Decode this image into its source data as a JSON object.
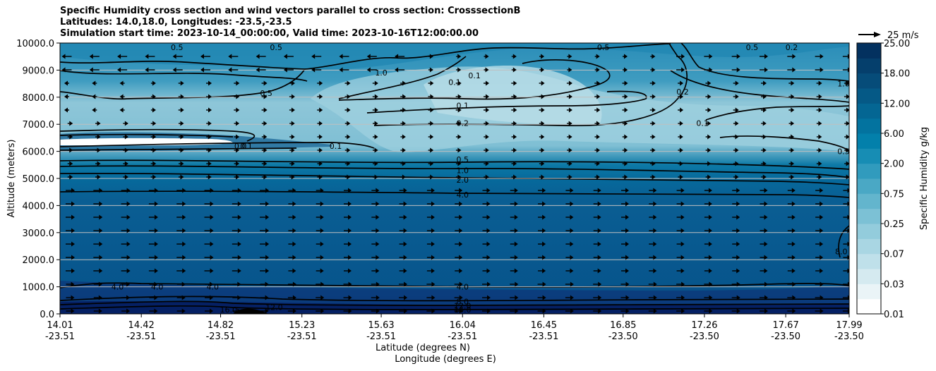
{
  "chart_data": {
    "type": "heatmap",
    "title_lines": [
      "Specific Humidity cross section and wind vectors parallel to cross section: CrosssectionB",
      "Latitudes: 14.0,18.0, Longitudes: -23.5,-23.5",
      "Simulation start time: 2023-10-14_00:00:00, Valid time: 2023-10-16T12:00:00.00"
    ],
    "ylabel": "Altitude (meters)",
    "xlabel_lat": "Latitude (degrees N)",
    "xlabel_lon": "Longitude (degrees E)",
    "ylim": [
      0,
      10000
    ],
    "y_ticks": [
      {
        "value": 0,
        "label": "0.0"
      },
      {
        "value": 1000,
        "label": "1000.0"
      },
      {
        "value": 2000,
        "label": "2000.0"
      },
      {
        "value": 3000,
        "label": "3000.0"
      },
      {
        "value": 4000,
        "label": "4000.0"
      },
      {
        "value": 5000,
        "label": "5000.0"
      },
      {
        "value": 6000,
        "label": "6000.0"
      },
      {
        "value": 7000,
        "label": "7000.0"
      },
      {
        "value": 8000,
        "label": "8000.0"
      },
      {
        "value": 9000,
        "label": "9000.0"
      },
      {
        "value": 10000,
        "label": "10000.0"
      }
    ],
    "x_ticks": [
      {
        "lat": "14.01",
        "lon": "-23.51"
      },
      {
        "lat": "14.42",
        "lon": "-23.51"
      },
      {
        "lat": "14.82",
        "lon": "-23.51"
      },
      {
        "lat": "15.23",
        "lon": "-23.51"
      },
      {
        "lat": "15.63",
        "lon": "-23.51"
      },
      {
        "lat": "16.04",
        "lon": "-23.51"
      },
      {
        "lat": "16.45",
        "lon": "-23.51"
      },
      {
        "lat": "16.85",
        "lon": "-23.50"
      },
      {
        "lat": "17.26",
        "lon": "-23.50"
      },
      {
        "lat": "17.67",
        "lon": "-23.50"
      },
      {
        "lat": "17.99",
        "lon": "-23.50"
      }
    ],
    "colorbar": {
      "label": "Specific Humidity g/kg",
      "levels": [
        0.01,
        0.02,
        0.03,
        0.05,
        0.07,
        0.1,
        0.25,
        0.5,
        0.75,
        1.0,
        2.0,
        4.0,
        6.0,
        8.0,
        12.0,
        16.0,
        18.0,
        20.0,
        25.0
      ],
      "tick_labels": [
        "0.01",
        "0.03",
        "0.07",
        "0.25",
        "0.75",
        "2.00",
        "6.00",
        "12.00",
        "18.00",
        "25.00"
      ]
    },
    "contour_levels": [
      "0.1",
      "0.2",
      "0.5",
      "1.0",
      "2.0",
      "4.0",
      "8.0",
      "12.0",
      "16.0"
    ],
    "contour_labels": [
      {
        "text": "0.5",
        "lat": 15.05,
        "alt": 8150
      },
      {
        "text": "1.0",
        "lat": 15.63,
        "alt": 8900
      },
      {
        "text": "0.1",
        "lat": 16.1,
        "alt": 8800
      },
      {
        "text": "0.1",
        "lat": 16.0,
        "alt": 8550
      },
      {
        "text": "0.1",
        "lat": 16.04,
        "alt": 7700
      },
      {
        "text": "0.2",
        "lat": 16.04,
        "alt": 7050
      },
      {
        "text": "0.5",
        "lat": 16.04,
        "alt": 5700
      },
      {
        "text": "1.0",
        "lat": 16.04,
        "alt": 5300
      },
      {
        "text": "2.0",
        "lat": 16.04,
        "alt": 4950
      },
      {
        "text": "4.0",
        "lat": 16.04,
        "alt": 4400
      },
      {
        "text": "0.1",
        "lat": 15.4,
        "alt": 6200
      },
      {
        "text": "0.1",
        "lat": 14.95,
        "alt": 6200
      },
      {
        "text": "0.0",
        "lat": 14.92,
        "alt": 6200
      },
      {
        "text": "0.2",
        "lat": 17.15,
        "alt": 8200
      },
      {
        "text": "0.5",
        "lat": 17.5,
        "alt": 9850
      },
      {
        "text": "0.1",
        "lat": 17.25,
        "alt": 7050
      },
      {
        "text": "1.0",
        "lat": 17.98,
        "alt": 8500
      },
      {
        "text": "0.5",
        "lat": 17.98,
        "alt": 6000
      },
      {
        "text": "8.0",
        "lat": 17.95,
        "alt": 2300
      },
      {
        "text": "4.0",
        "lat": 16.04,
        "alt": 1000
      },
      {
        "text": "8.0",
        "lat": 16.04,
        "alt": 450
      },
      {
        "text": "12.0",
        "lat": 16.04,
        "alt": 300
      },
      {
        "text": "16.0",
        "lat": 16.04,
        "alt": 150
      },
      {
        "text": "4.0",
        "lat": 14.3,
        "alt": 1000
      },
      {
        "text": "4.0",
        "lat": 14.5,
        "alt": 1000
      },
      {
        "text": "4.0",
        "lat": 14.78,
        "alt": 1000
      },
      {
        "text": "12.0",
        "lat": 15.09,
        "alt": 250
      },
      {
        "text": "16.0",
        "lat": 14.86,
        "alt": 100
      },
      {
        "text": "0.5",
        "lat": 14.6,
        "alt": 10000
      },
      {
        "text": "0.5",
        "lat": 15.1,
        "alt": 10000
      },
      {
        "text": "0.5",
        "lat": 16.75,
        "alt": 10000
      },
      {
        "text": "0.2",
        "lat": 17.7,
        "alt": 10000
      }
    ],
    "quiver_key": {
      "label": "25 m/s",
      "speed": 25
    }
  }
}
